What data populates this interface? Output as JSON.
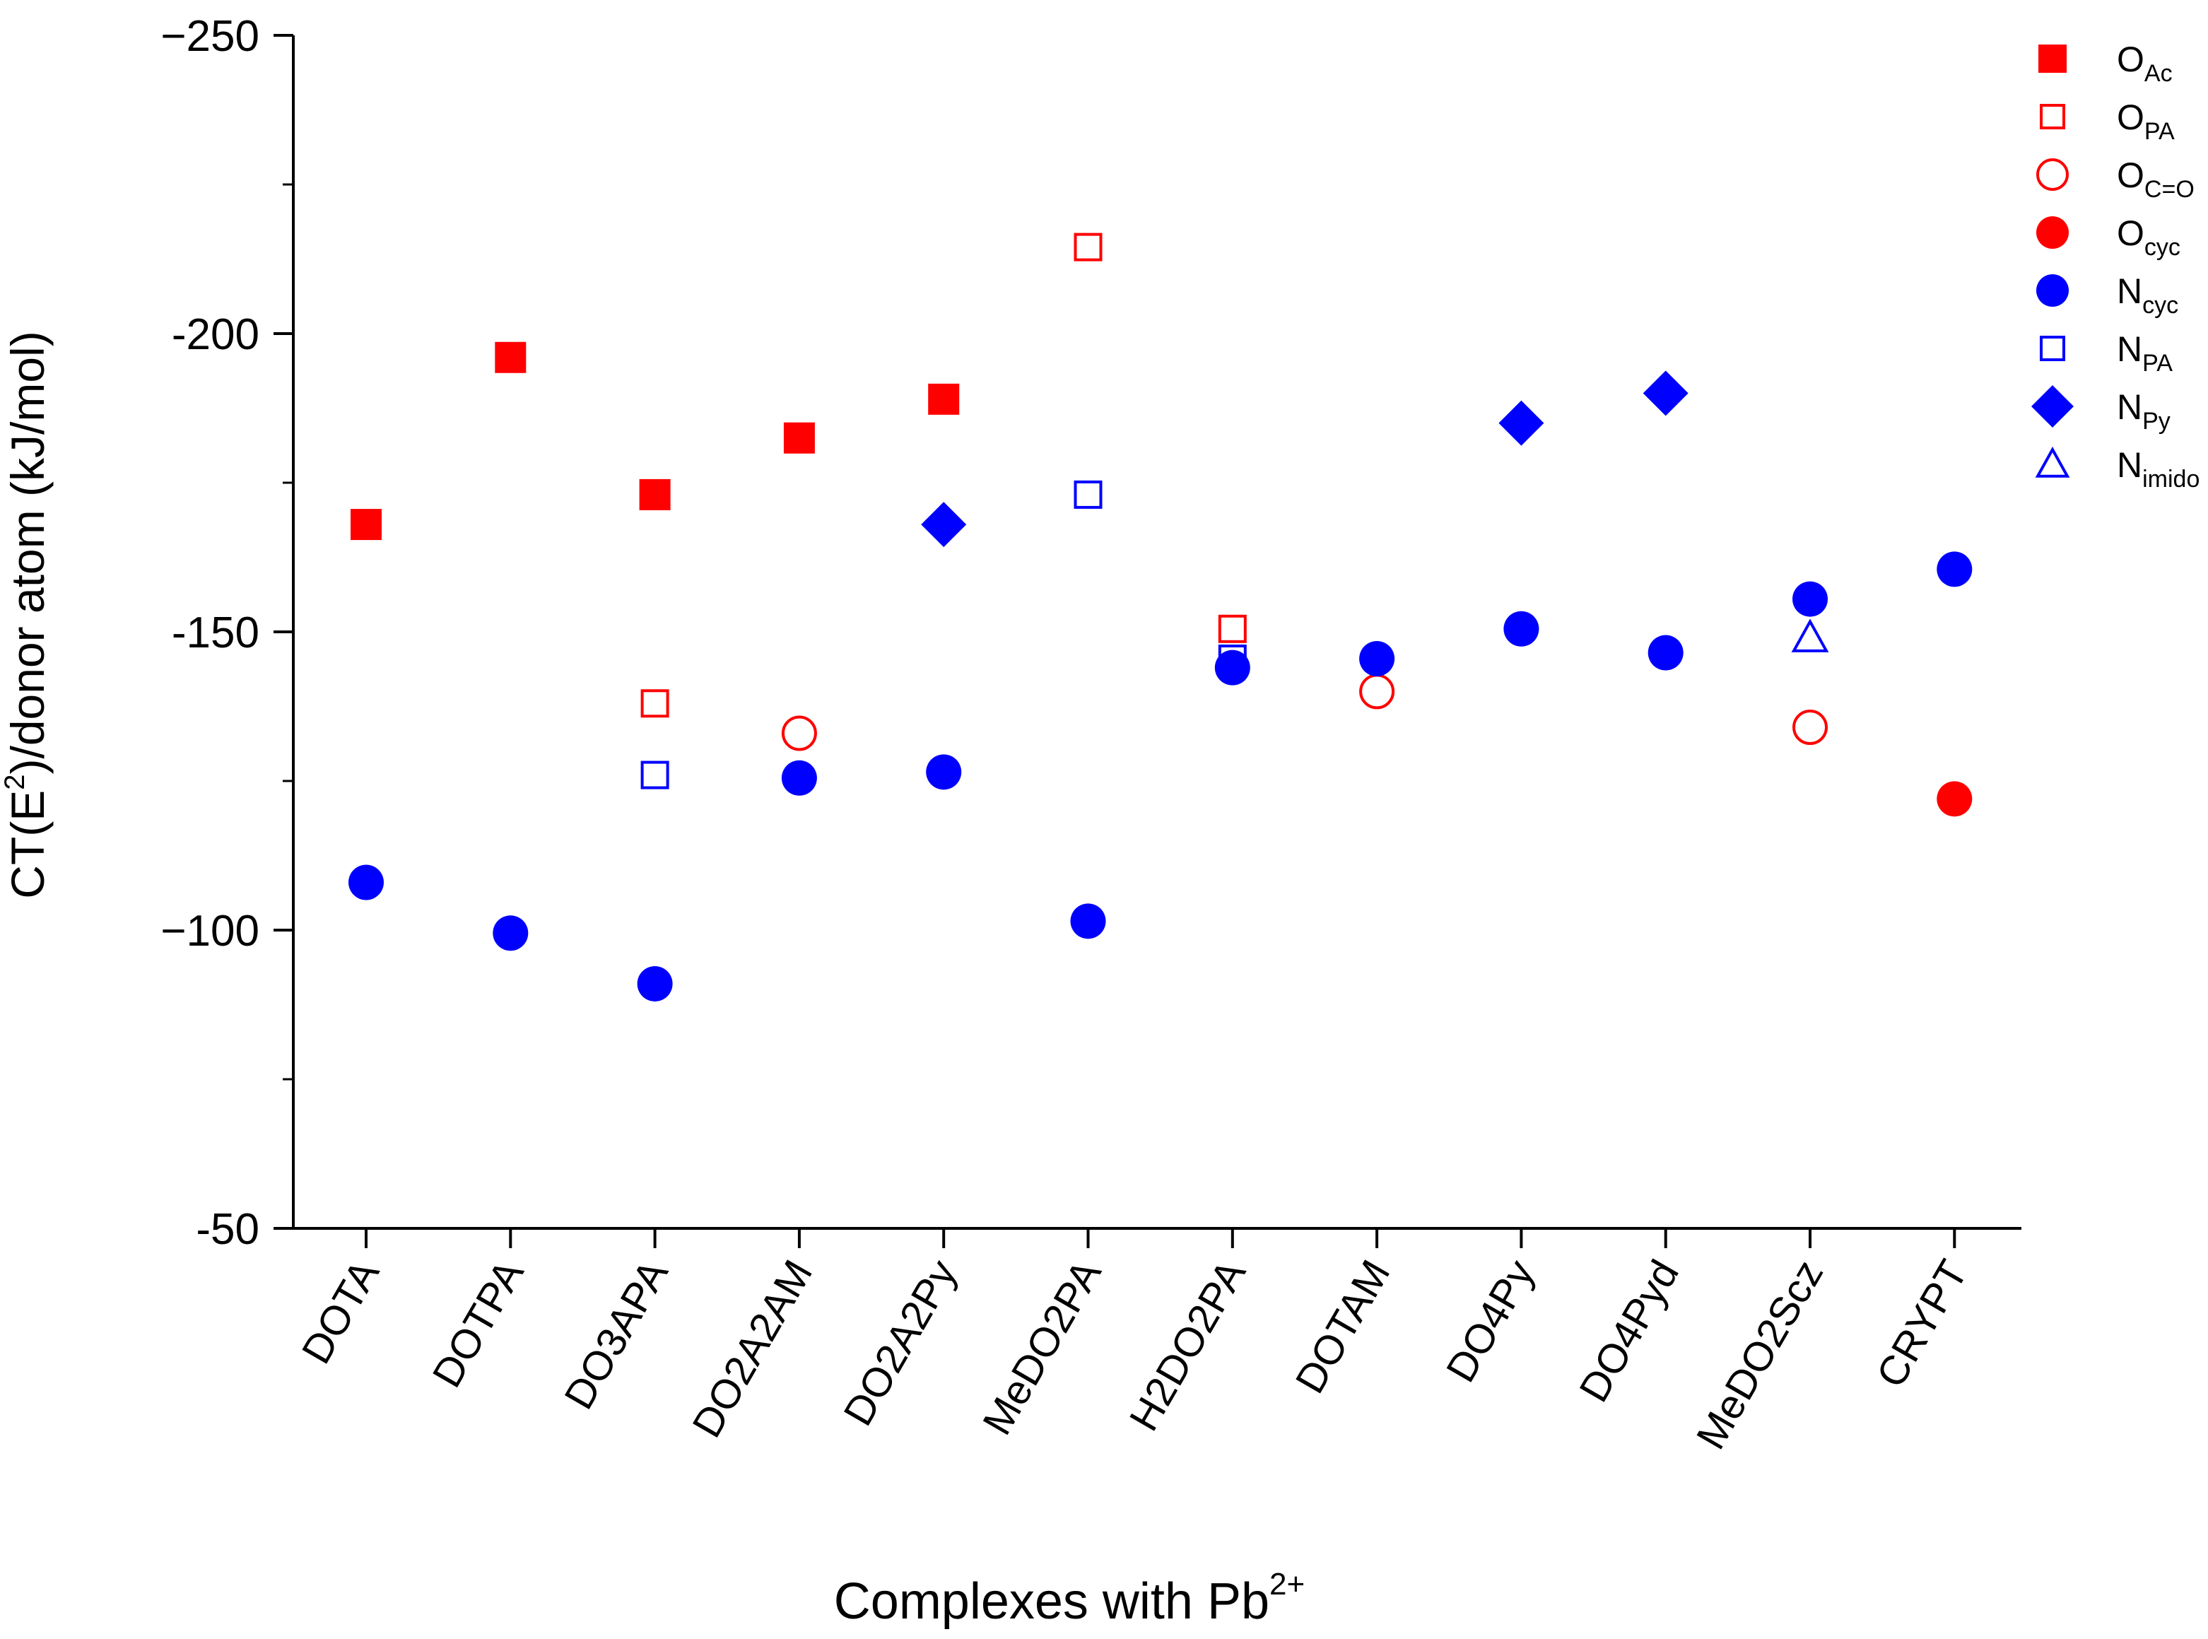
{
  "chart_data": {
    "type": "scatter",
    "title": "",
    "xlabel": "Complexes with Pb",
    "xlabel_sup": "2+",
    "ylabel": {
      "pre": "CT(E",
      "sup": "2",
      "post": ")/donor atom  (kJ/mol)"
    },
    "categories": [
      "DOTA",
      "DOTPA",
      "DO3APA",
      "DO2A2AM",
      "DO2A2Py",
      "MeDO2PA",
      "H2DO2PA",
      "DOTAM",
      "DO4Py",
      "DO4Pyd",
      "MeDO2Scz",
      "CRYPT"
    ],
    "ylim": [
      -50,
      -250
    ],
    "yticks": [
      -250,
      -200,
      -150,
      -100,
      -50
    ],
    "ytick_labels": [
      "−250",
      "-200",
      "-150",
      "−100",
      "-50"
    ],
    "grid": false,
    "legend_position": "top-right",
    "series": [
      {
        "name": "O",
        "sub": "Ac",
        "marker": "square",
        "filled": true,
        "color": "#ff0000",
        "values": [
          -168,
          -196,
          -173,
          -182.5,
          -189,
          null,
          null,
          null,
          null,
          null,
          null,
          null
        ]
      },
      {
        "name": "O",
        "sub": "PA",
        "marker": "square",
        "filled": false,
        "color": "#ff0000",
        "values": [
          null,
          null,
          -138,
          null,
          null,
          -214.5,
          -150.5,
          null,
          null,
          null,
          null,
          null
        ]
      },
      {
        "name": "O",
        "sub": "C=O",
        "marker": "circle",
        "filled": false,
        "color": "#ff0000",
        "values": [
          null,
          null,
          null,
          -133,
          null,
          null,
          null,
          -140,
          null,
          null,
          -134,
          null
        ]
      },
      {
        "name": "O",
        "sub": "cyc",
        "marker": "circle",
        "filled": true,
        "color": "#ff0000",
        "values": [
          null,
          null,
          null,
          null,
          null,
          null,
          null,
          null,
          null,
          null,
          null,
          -122
        ]
      },
      {
        "name": "N",
        "sub": "cyc",
        "marker": "circle",
        "filled": true,
        "color": "#0000ff",
        "values": [
          -108,
          -99.5,
          -91,
          -125.5,
          -126.5,
          -101.5,
          -144,
          -145.5,
          -150.5,
          -146.5,
          -155.5,
          -160.5
        ]
      },
      {
        "name": "N",
        "sub": "PA",
        "marker": "square",
        "filled": false,
        "color": "#0000ff",
        "values": [
          null,
          null,
          -126,
          null,
          null,
          -173,
          -145.5,
          null,
          null,
          null,
          null,
          null
        ]
      },
      {
        "name": "N",
        "sub": "Py",
        "marker": "diamond",
        "filled": true,
        "color": "#0000ff",
        "values": [
          null,
          null,
          null,
          null,
          -168,
          null,
          null,
          null,
          -185,
          -190,
          null,
          null
        ]
      },
      {
        "name": "N",
        "sub": "imido",
        "marker": "triangle",
        "filled": false,
        "color": "#0000ff",
        "values": [
          null,
          null,
          null,
          null,
          null,
          null,
          null,
          null,
          null,
          null,
          -149,
          null
        ]
      }
    ]
  }
}
